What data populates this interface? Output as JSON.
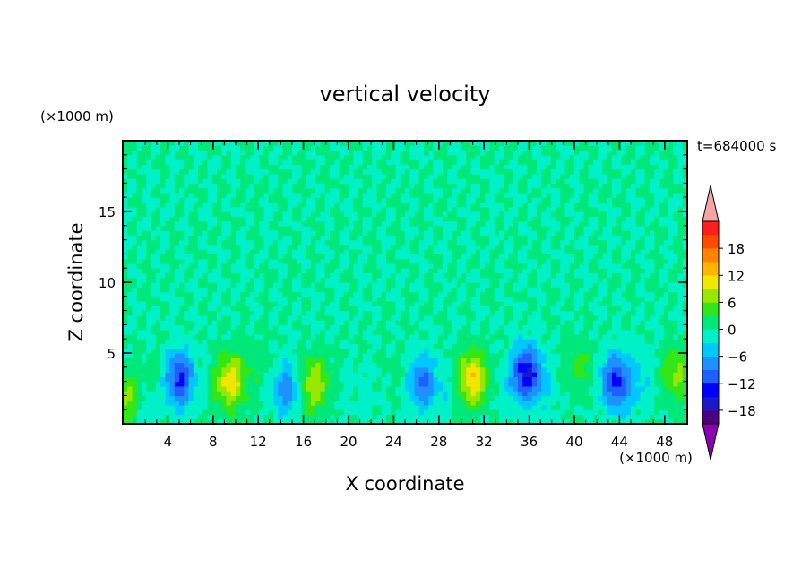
{
  "chart_data": {
    "type": "heatmap",
    "title": "vertical velocity",
    "xlabel": "X coordinate",
    "ylabel": "Z coordinate",
    "x_unit": "(×1000 m)",
    "y_unit": "(×1000 m)",
    "time_label": "t=684000 s",
    "xlim": [
      0,
      50
    ],
    "ylim": [
      0,
      20
    ],
    "x_ticks": [
      4,
      8,
      12,
      16,
      20,
      24,
      28,
      32,
      36,
      40,
      44,
      48
    ],
    "y_ticks": [
      5,
      10,
      15
    ],
    "colorbar": {
      "tick_labels": [
        "18",
        "12",
        "6",
        "0",
        "−6",
        "−12",
        "−18"
      ],
      "tick_values": [
        18,
        12,
        6,
        0,
        -6,
        -12,
        -18
      ],
      "levels": [
        -20,
        -18,
        -15,
        -12,
        -9,
        -6,
        -3,
        0,
        3,
        6,
        9,
        12,
        15,
        18,
        20
      ],
      "colors": [
        "#4b0082",
        "#1a1acd",
        "#0000ff",
        "#1e5fff",
        "#1e90ff",
        "#00c8ff",
        "#00f0c8",
        "#00e87a",
        "#33e61a",
        "#99e600",
        "#f0e600",
        "#ffb400",
        "#ff8200",
        "#ff4b00",
        "#ff1e1e"
      ],
      "over_color": "#f5a3a3",
      "under_color": "#8b00b0"
    },
    "features": [
      {
        "x": 0.6,
        "z": 1.8,
        "w": 8
      },
      {
        "x": 1.8,
        "z": 1.4,
        "w": -4
      },
      {
        "x": 3.0,
        "z": 3.0,
        "w": 2
      },
      {
        "x": 5.0,
        "z": 3.2,
        "w": -13
      },
      {
        "x": 6.5,
        "z": 4.0,
        "w": 0
      },
      {
        "x": 9.5,
        "z": 3.0,
        "w": 11
      },
      {
        "x": 12.0,
        "z": 4.0,
        "w": 2
      },
      {
        "x": 14.5,
        "z": 2.5,
        "w": -8
      },
      {
        "x": 17.0,
        "z": 2.8,
        "w": 9
      },
      {
        "x": 19.5,
        "z": 2.5,
        "w": -1
      },
      {
        "x": 22.0,
        "z": 2.4,
        "w": -1
      },
      {
        "x": 24.0,
        "z": 3.6,
        "w": 1
      },
      {
        "x": 26.5,
        "z": 3.0,
        "w": -9
      },
      {
        "x": 28.5,
        "z": 2.0,
        "w": -2
      },
      {
        "x": 31.0,
        "z": 3.2,
        "w": 12
      },
      {
        "x": 33.5,
        "z": 2.0,
        "w": -1
      },
      {
        "x": 35.7,
        "z": 3.6,
        "w": -15
      },
      {
        "x": 37.5,
        "z": 2.5,
        "w": -2
      },
      {
        "x": 40.5,
        "z": 4.0,
        "w": 4
      },
      {
        "x": 43.7,
        "z": 3.0,
        "w": -13
      },
      {
        "x": 46.0,
        "z": 3.0,
        "w": -3
      },
      {
        "x": 49.0,
        "z": 3.5,
        "w": 7
      }
    ]
  }
}
